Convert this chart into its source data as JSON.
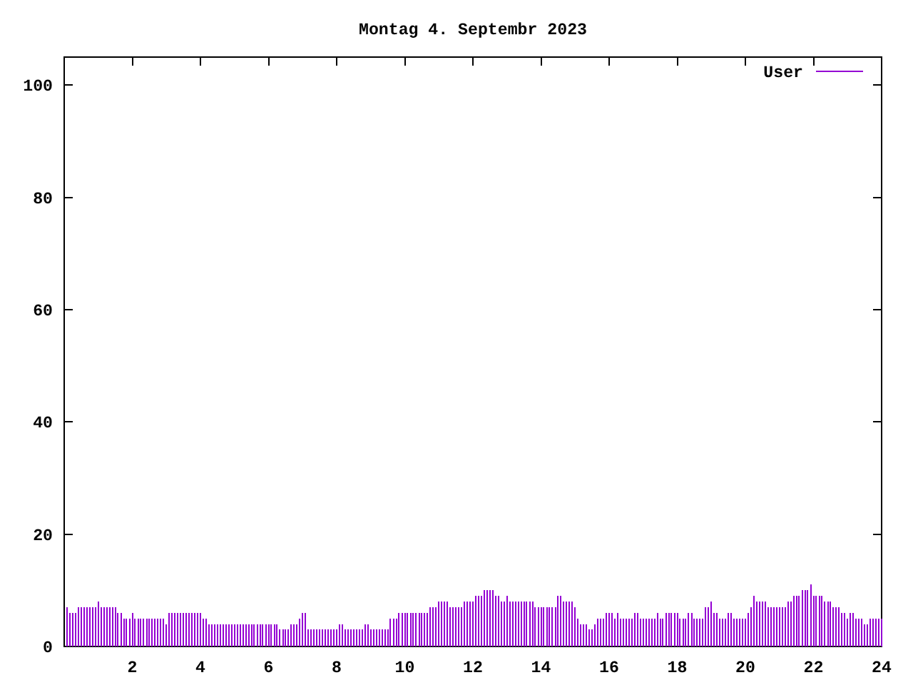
{
  "chart_data": {
    "type": "bar",
    "title": "Montag 4. Septembr 2023",
    "x": [
      0.08,
      0.17,
      0.25,
      0.33,
      0.42,
      0.5,
      0.58,
      0.67,
      0.75,
      0.83,
      0.92,
      1,
      1.08,
      1.17,
      1.25,
      1.33,
      1.42,
      1.5,
      1.58,
      1.67,
      1.75,
      1.83,
      1.92,
      2,
      2.08,
      2.17,
      2.25,
      2.33,
      2.42,
      2.5,
      2.58,
      2.67,
      2.75,
      2.83,
      2.92,
      3,
      3.08,
      3.17,
      3.25,
      3.33,
      3.42,
      3.5,
      3.58,
      3.67,
      3.75,
      3.83,
      3.92,
      4,
      4.08,
      4.17,
      4.25,
      4.33,
      4.42,
      4.5,
      4.58,
      4.67,
      4.75,
      4.83,
      4.92,
      5,
      5.08,
      5.17,
      5.25,
      5.33,
      5.42,
      5.5,
      5.58,
      5.67,
      5.75,
      5.83,
      5.92,
      6,
      6.08,
      6.17,
      6.25,
      6.33,
      6.42,
      6.5,
      6.58,
      6.67,
      6.75,
      6.83,
      6.92,
      7,
      7.08,
      7.17,
      7.25,
      7.33,
      7.42,
      7.5,
      7.58,
      7.67,
      7.75,
      7.83,
      7.92,
      8,
      8.08,
      8.17,
      8.25,
      8.33,
      8.42,
      8.5,
      8.58,
      8.67,
      8.75,
      8.83,
      8.92,
      9,
      9.08,
      9.17,
      9.25,
      9.33,
      9.42,
      9.5,
      9.58,
      9.67,
      9.75,
      9.83,
      9.92,
      10,
      10.08,
      10.17,
      10.25,
      10.33,
      10.42,
      10.5,
      10.58,
      10.67,
      10.75,
      10.83,
      10.92,
      11,
      11.08,
      11.17,
      11.25,
      11.33,
      11.42,
      11.5,
      11.58,
      11.67,
      11.75,
      11.83,
      11.92,
      12,
      12.08,
      12.17,
      12.25,
      12.33,
      12.42,
      12.5,
      12.58,
      12.67,
      12.75,
      12.83,
      12.92,
      13,
      13.08,
      13.17,
      13.25,
      13.33,
      13.42,
      13.5,
      13.58,
      13.67,
      13.75,
      13.83,
      13.92,
      14,
      14.08,
      14.17,
      14.25,
      14.33,
      14.42,
      14.5,
      14.58,
      14.67,
      14.75,
      14.83,
      14.92,
      15,
      15.08,
      15.17,
      15.25,
      15.33,
      15.42,
      15.5,
      15.58,
      15.67,
      15.75,
      15.83,
      15.92,
      16,
      16.08,
      16.17,
      16.25,
      16.33,
      16.42,
      16.5,
      16.58,
      16.67,
      16.75,
      16.83,
      16.92,
      17,
      17.08,
      17.17,
      17.25,
      17.33,
      17.42,
      17.5,
      17.58,
      17.67,
      17.75,
      17.83,
      17.92,
      18,
      18.08,
      18.17,
      18.25,
      18.33,
      18.42,
      18.5,
      18.58,
      18.67,
      18.75,
      18.83,
      18.92,
      19,
      19.08,
      19.17,
      19.25,
      19.33,
      19.42,
      19.5,
      19.58,
      19.67,
      19.75,
      19.83,
      19.92,
      20,
      20.08,
      20.17,
      20.25,
      20.33,
      20.42,
      20.5,
      20.58,
      20.67,
      20.75,
      20.83,
      20.92,
      21,
      21.08,
      21.17,
      21.25,
      21.33,
      21.42,
      21.5,
      21.58,
      21.67,
      21.75,
      21.83,
      21.92,
      22,
      22.08,
      22.17,
      22.25,
      22.33,
      22.42,
      22.5,
      22.58,
      22.67,
      22.75,
      22.83,
      22.92,
      23,
      23.08,
      23.17,
      23.25,
      23.33,
      23.42,
      23.5,
      23.58,
      23.67,
      23.75,
      23.83,
      23.92,
      24
    ],
    "series": [
      {
        "name": "User",
        "color": "#9400d3",
        "values": [
          7,
          6,
          6,
          6,
          7,
          7,
          7,
          7,
          7,
          7,
          7,
          8,
          7,
          7,
          7,
          7,
          7,
          7,
          6,
          6,
          5,
          5,
          5,
          6,
          5,
          5,
          5,
          5,
          5,
          5,
          5,
          5,
          5,
          5,
          5,
          4,
          6,
          6,
          6,
          6,
          6,
          6,
          6,
          6,
          6,
          6,
          6,
          6,
          5,
          5,
          4,
          4,
          4,
          4,
          4,
          4,
          4,
          4,
          4,
          4,
          4,
          4,
          4,
          4,
          4,
          4,
          4,
          4,
          4,
          4,
          4,
          4,
          4,
          4,
          4,
          3,
          3,
          3,
          3,
          4,
          4,
          4,
          5,
          6,
          6,
          3,
          3,
          3,
          3,
          3,
          3,
          3,
          3,
          3,
          3,
          3,
          4,
          4,
          3,
          3,
          3,
          3,
          3,
          3,
          3,
          4,
          4,
          3,
          3,
          3,
          3,
          3,
          3,
          3,
          5,
          5,
          5,
          6,
          6,
          6,
          6,
          6,
          6,
          6,
          6,
          6,
          6,
          6,
          7,
          7,
          7,
          8,
          8,
          8,
          8,
          7,
          7,
          7,
          7,
          7,
          8,
          8,
          8,
          8,
          9,
          9,
          9,
          10,
          10,
          10,
          10,
          9,
          9,
          8,
          8,
          9,
          8,
          8,
          8,
          8,
          8,
          8,
          8,
          8,
          8,
          7,
          7,
          7,
          7,
          7,
          7,
          7,
          7,
          9,
          9,
          8,
          8,
          8,
          8,
          7,
          5,
          4,
          4,
          4,
          3,
          3,
          4,
          5,
          5,
          5,
          6,
          6,
          6,
          5,
          6,
          5,
          5,
          5,
          5,
          5,
          6,
          6,
          5,
          5,
          5,
          5,
          5,
          5,
          6,
          5,
          5,
          6,
          6,
          6,
          6,
          6,
          5,
          5,
          5,
          6,
          6,
          5,
          5,
          5,
          5,
          7,
          7,
          8,
          6,
          6,
          5,
          5,
          5,
          6,
          6,
          5,
          5,
          5,
          5,
          5,
          6,
          7,
          9,
          8,
          8,
          8,
          8,
          7,
          7,
          7,
          7,
          7,
          7,
          7,
          8,
          8,
          9,
          9,
          9,
          10,
          10,
          10,
          11,
          9,
          9,
          9,
          9,
          8,
          8,
          8,
          7,
          7,
          7,
          6,
          6,
          5,
          6,
          6,
          5,
          5,
          5,
          4,
          4,
          5,
          5,
          5,
          5,
          5
        ]
      }
    ],
    "xlim": [
      0,
      24
    ],
    "ylim": [
      0,
      105
    ],
    "xticks": [
      2,
      4,
      6,
      8,
      10,
      12,
      14,
      16,
      18,
      20,
      22,
      24
    ],
    "yticks": [
      0,
      20,
      40,
      60,
      80,
      100
    ],
    "legend": "top right"
  }
}
